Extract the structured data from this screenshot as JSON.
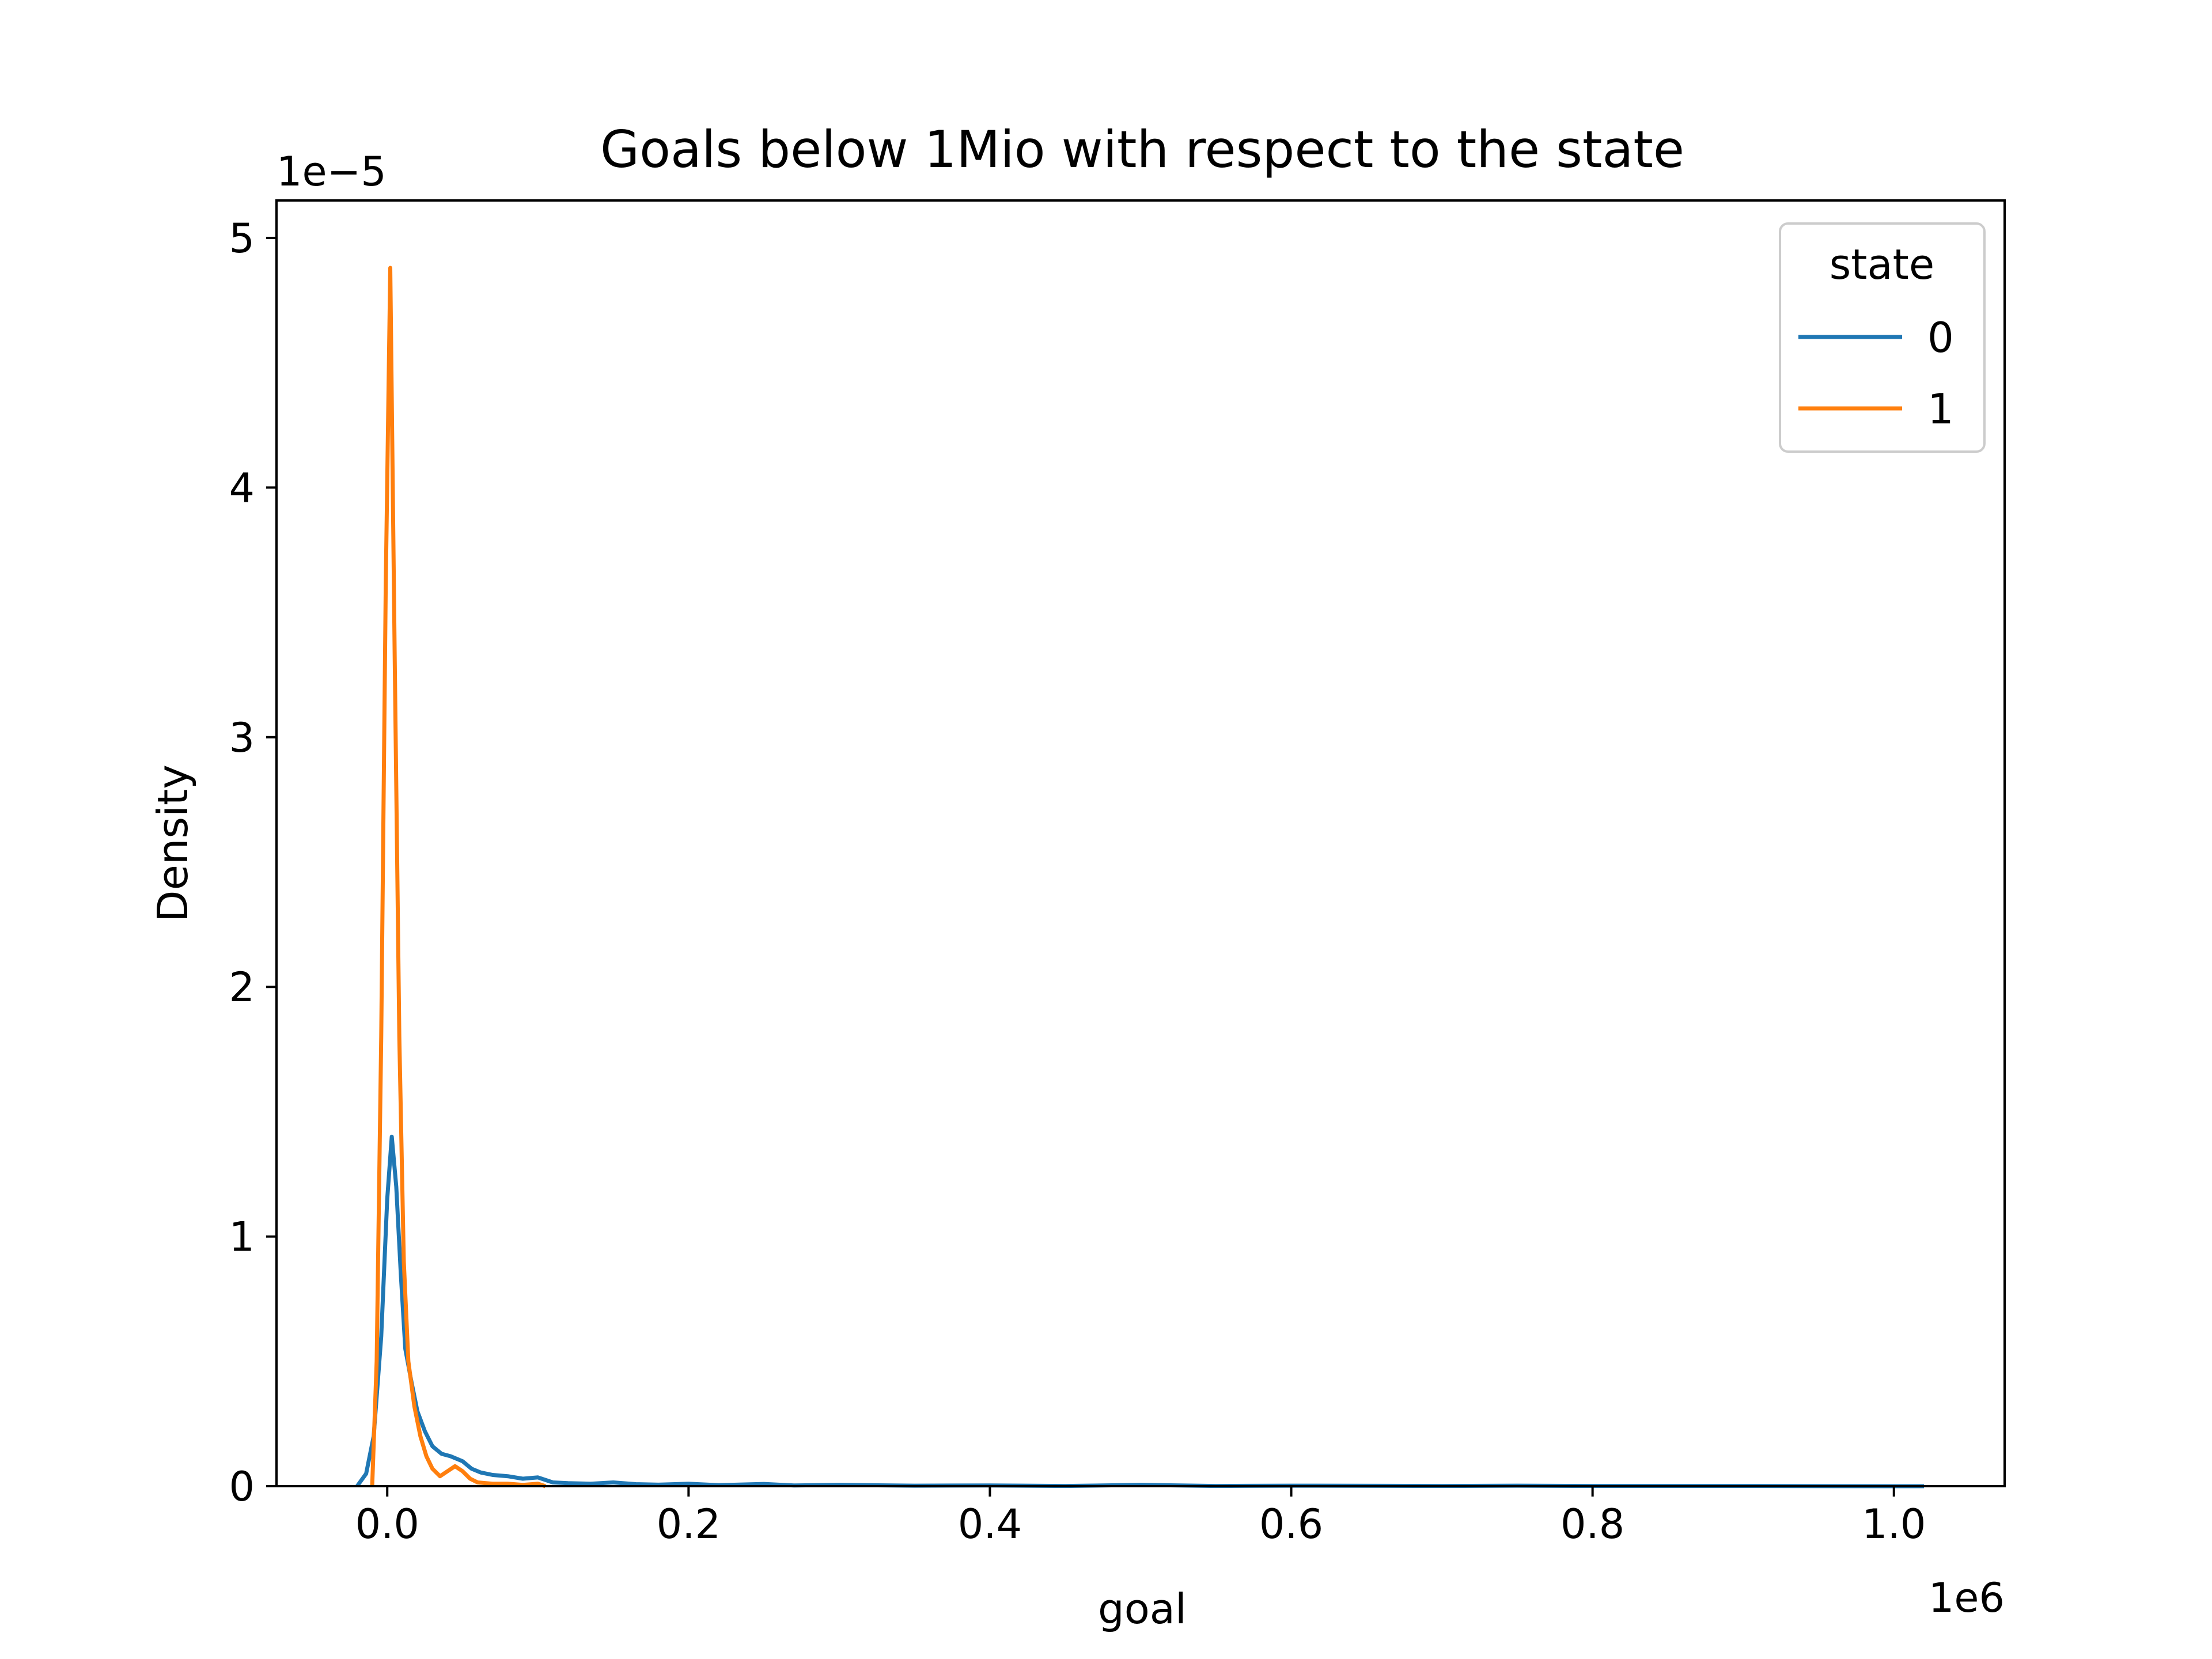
{
  "chart_data": {
    "type": "line",
    "title": "Goals below 1Mio with respect to the state",
    "xlabel": "goal",
    "ylabel": "Density",
    "x_offset_label": "1e6",
    "y_offset_label": "1e−5",
    "xlim": [
      -0.0735,
      1.0735
    ],
    "ylim": [
      0,
      5.15
    ],
    "x_ticks": [
      0.0,
      0.2,
      0.4,
      0.6,
      0.8,
      1.0
    ],
    "x_tick_labels": [
      "0.0",
      "0.2",
      "0.4",
      "0.6",
      "0.8",
      "1.0"
    ],
    "y_ticks": [
      0,
      1,
      2,
      3,
      4,
      5
    ],
    "y_tick_labels": [
      "0",
      "1",
      "2",
      "3",
      "4",
      "5"
    ],
    "grid": false,
    "legend": {
      "title": "state",
      "placement": "upper right"
    },
    "series": [
      {
        "name": "0",
        "color": "#1f77b4",
        "x": [
          -0.02,
          -0.014,
          -0.009,
          -0.004,
          0.0,
          0.003,
          0.006,
          0.009,
          0.012,
          0.016,
          0.02,
          0.025,
          0.03,
          0.036,
          0.042,
          0.05,
          0.056,
          0.062,
          0.07,
          0.08,
          0.09,
          0.1,
          0.11,
          0.12,
          0.135,
          0.15,
          0.165,
          0.18,
          0.2,
          0.22,
          0.25,
          0.27,
          0.3,
          0.35,
          0.4,
          0.45,
          0.5,
          0.55,
          0.6,
          0.7,
          0.75,
          0.8,
          0.9,
          1.0,
          1.02
        ],
        "y": [
          0.0,
          0.05,
          0.2,
          0.6,
          1.15,
          1.4,
          1.2,
          0.85,
          0.55,
          0.42,
          0.3,
          0.22,
          0.16,
          0.13,
          0.12,
          0.1,
          0.07,
          0.055,
          0.045,
          0.04,
          0.03,
          0.035,
          0.015,
          0.012,
          0.01,
          0.015,
          0.008,
          0.006,
          0.01,
          0.004,
          0.009,
          0.003,
          0.005,
          0.002,
          0.003,
          0.001,
          0.005,
          0.001,
          0.002,
          0.001,
          0.002,
          0.001,
          0.001,
          0.0,
          0.0
        ]
      },
      {
        "name": "1",
        "color": "#ff7f0e",
        "x": [
          -0.01,
          -0.007,
          -0.004,
          -0.001,
          0.002,
          0.005,
          0.008,
          0.011,
          0.014,
          0.018,
          0.022,
          0.026,
          0.03,
          0.035,
          0.04,
          0.045,
          0.05,
          0.055,
          0.06,
          0.07,
          0.08,
          0.09,
          0.1,
          0.105
        ],
        "y": [
          0.0,
          0.5,
          1.8,
          3.6,
          4.88,
          3.3,
          1.8,
          0.9,
          0.5,
          0.32,
          0.2,
          0.12,
          0.07,
          0.04,
          0.06,
          0.08,
          0.06,
          0.03,
          0.015,
          0.01,
          0.01,
          0.005,
          0.01,
          0.0
        ]
      }
    ]
  }
}
